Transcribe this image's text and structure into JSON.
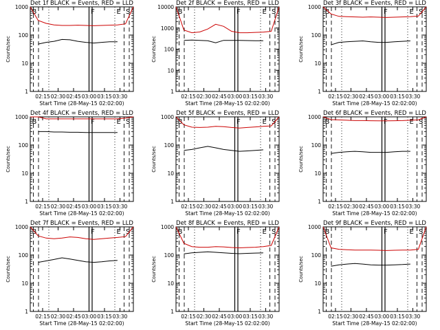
{
  "chart_data": [
    {
      "type": "line",
      "title": "Det 1f BLACK = Events, RED = LLD",
      "xlabel": "Start Time (28-May-15 02:02:00)",
      "ylabel": "Counts/sec",
      "yscale": "log",
      "ylim": [
        1,
        1000
      ],
      "xlim": [
        0,
        100
      ],
      "xtick_labels": [
        "02:15",
        "02:30",
        "02:45",
        "03:00",
        "03:15",
        "03:30"
      ],
      "ytick_labels": [
        "1",
        "10",
        "100",
        "1000"
      ],
      "markers": [
        "B",
        "F",
        "E",
        "S"
      ],
      "series": [
        {
          "color": "#cc0000",
          "values": [
            1000,
            330,
            260,
            230,
            220,
            220,
            225,
            220,
            215,
            220,
            225,
            230,
            250,
            1000
          ]
        },
        {
          "color": "#000000",
          "values": [
            null,
            48,
            55,
            60,
            70,
            68,
            60,
            55,
            52,
            55,
            58,
            58,
            null,
            null
          ]
        }
      ]
    },
    {
      "type": "line",
      "title": "Det 2f BLACK = Events, RED = LLD",
      "xlabel": "Start Time (28-May-15 02:02:00)",
      "ylabel": "Counts/sec",
      "yscale": "log",
      "ylim": [
        1,
        10000
      ],
      "xlim": [
        0,
        100
      ],
      "xtick_labels": [
        "02:15",
        "02:30",
        "02:45",
        "03:00",
        "03:15",
        "03:30"
      ],
      "ytick_labels": [
        "1",
        "10",
        "100",
        "1000",
        "10000"
      ],
      "markers": [
        "B",
        "F",
        "E",
        "S"
      ],
      "series": [
        {
          "color": "#cc0000",
          "values": [
            10000,
            800,
            600,
            650,
            900,
            1500,
            1200,
            700,
            600,
            600,
            620,
            640,
            700,
            10000
          ]
        },
        {
          "color": "#000000",
          "values": [
            null,
            260,
            270,
            260,
            250,
            200,
            260,
            260,
            260,
            255,
            250,
            250,
            null,
            null
          ]
        }
      ]
    },
    {
      "type": "line",
      "title": "Det 3f BLACK = Events, RED = LLD",
      "xlabel": "Start Time (28-May-15 02:02:00)",
      "ylabel": "Counts/sec",
      "yscale": "log",
      "ylim": [
        1,
        1000
      ],
      "xlim": [
        0,
        100
      ],
      "xtick_labels": [
        "02:15",
        "02:30",
        "02:45",
        "03:00",
        "03:15",
        "03:30"
      ],
      "ytick_labels": [
        "1",
        "10",
        "100",
        "1000"
      ],
      "markers": [
        "B",
        "F",
        "E",
        "S"
      ],
      "series": [
        {
          "color": "#cc0000",
          "values": [
            1000,
            560,
            460,
            450,
            440,
            430,
            440,
            430,
            420,
            430,
            440,
            450,
            470,
            1000
          ]
        },
        {
          "color": "#000000",
          "values": [
            null,
            45,
            55,
            58,
            60,
            62,
            58,
            55,
            55,
            58,
            60,
            62,
            null,
            null
          ]
        }
      ]
    },
    {
      "type": "line",
      "title": "Det 4f BLACK = Events, RED = LLD",
      "xlabel": "Start Time (28-May-15 02:02:00)",
      "ylabel": "Counts/sec",
      "yscale": "log",
      "ylim": [
        1,
        1000
      ],
      "xlim": [
        0,
        100
      ],
      "xtick_labels": [
        "02:15",
        "02:30",
        "02:45",
        "03:00",
        "03:15",
        "03:30"
      ],
      "ytick_labels": [
        "1",
        "10",
        "100",
        "1000"
      ],
      "markers": [
        "B",
        "F",
        "E",
        "S"
      ],
      "series": [
        {
          "color": "#cc0000",
          "values": [
            1000,
            1000,
            850,
            850,
            850,
            850,
            850,
            850,
            850,
            850,
            850,
            850,
            900,
            1000
          ]
        },
        {
          "color": "#000000",
          "values": [
            null,
            300,
            300,
            290,
            290,
            285,
            285,
            280,
            280,
            280,
            280,
            280,
            null,
            null
          ]
        }
      ]
    },
    {
      "type": "line",
      "title": "Det 5f BLACK = Events, RED = LLD",
      "xlabel": "Start Time (28-May-15 02:02:00)",
      "ylabel": "Counts/sec",
      "yscale": "log",
      "ylim": [
        1,
        1000
      ],
      "xlim": [
        0,
        100
      ],
      "xtick_labels": [
        "02:15",
        "02:30",
        "02:45",
        "03:00",
        "03:15",
        "03:30"
      ],
      "ytick_labels": [
        "1",
        "10",
        "100",
        "1000"
      ],
      "markers": [
        "B",
        "F",
        "E",
        "S"
      ],
      "series": [
        {
          "color": "#cc0000",
          "values": [
            1000,
            520,
            430,
            420,
            430,
            460,
            450,
            420,
            400,
            420,
            440,
            460,
            480,
            1000
          ]
        },
        {
          "color": "#000000",
          "values": [
            null,
            65,
            70,
            80,
            90,
            80,
            70,
            65,
            60,
            62,
            65,
            68,
            null,
            null
          ]
        }
      ]
    },
    {
      "type": "line",
      "title": "Det 6f BLACK = Events, RED = LLD",
      "xlabel": "Start Time (28-May-15 02:02:00)",
      "ylabel": "Counts/sec",
      "yscale": "log",
      "ylim": [
        1,
        1000
      ],
      "xlim": [
        0,
        100
      ],
      "xtick_labels": [
        "02:15",
        "02:30",
        "02:45",
        "03:00",
        "03:15",
        "03:30"
      ],
      "ytick_labels": [
        "1",
        "10",
        "100",
        "1000"
      ],
      "markers": [
        "B",
        "F",
        "E",
        "S"
      ],
      "series": [
        {
          "color": "#cc0000",
          "values": [
            1000,
            800,
            780,
            760,
            740,
            740,
            730,
            720,
            720,
            730,
            740,
            760,
            780,
            1000
          ]
        },
        {
          "color": "#000000",
          "values": [
            null,
            50,
            55,
            58,
            60,
            58,
            55,
            55,
            55,
            58,
            60,
            60,
            null,
            null
          ]
        }
      ]
    },
    {
      "type": "line",
      "title": "Det 7f BLACK = Events, RED = LLD",
      "xlabel": "Start Time (28-May-15 02:02:00)",
      "ylabel": "Counts/sec",
      "yscale": "log",
      "ylim": [
        1,
        1000
      ],
      "xlim": [
        0,
        100
      ],
      "xtick_labels": [
        "02:15",
        "02:30",
        "02:45",
        "03:00",
        "03:15",
        "03:30"
      ],
      "ytick_labels": [
        "1",
        "10",
        "100",
        "1000"
      ],
      "markers": [
        "B",
        "F",
        "E",
        "S"
      ],
      "series": [
        {
          "color": "#cc0000",
          "values": [
            1000,
            480,
            400,
            380,
            400,
            440,
            420,
            380,
            360,
            380,
            400,
            420,
            450,
            1000
          ]
        },
        {
          "color": "#000000",
          "values": [
            null,
            55,
            62,
            70,
            80,
            72,
            65,
            58,
            55,
            58,
            62,
            65,
            null,
            null
          ]
        }
      ]
    },
    {
      "type": "line",
      "title": "Det 8f BLACK = Events, RED = LLD",
      "xlabel": "Start Time (28-May-15 02:02:00)",
      "ylabel": "Counts/sec",
      "yscale": "log",
      "ylim": [
        1,
        1000
      ],
      "xlim": [
        0,
        100
      ],
      "xtick_labels": [
        "02:15",
        "02:30",
        "02:45",
        "03:00",
        "03:15",
        "03:30"
      ],
      "ytick_labels": [
        "1",
        "10",
        "100",
        "1000"
      ],
      "markers": [
        "B",
        "F",
        "E",
        "S"
      ],
      "series": [
        {
          "color": "#cc0000",
          "values": [
            1000,
            260,
            200,
            190,
            190,
            200,
            195,
            185,
            180,
            185,
            190,
            200,
            220,
            1000
          ]
        },
        {
          "color": "#000000",
          "values": [
            null,
            110,
            120,
            125,
            130,
            125,
            120,
            115,
            112,
            115,
            118,
            120,
            null,
            null
          ]
        }
      ]
    },
    {
      "type": "line",
      "title": "Det 9f BLACK = Events, RED = LLD",
      "xlabel": "Start Time (28-May-15 02:02:00)",
      "ylabel": "Counts/sec",
      "yscale": "log",
      "ylim": [
        1,
        1000
      ],
      "xlim": [
        0,
        100
      ],
      "xtick_labels": [
        "02:15",
        "02:30",
        "02:45",
        "03:00",
        "03:15",
        "03:30"
      ],
      "ytick_labels": [
        "1",
        "10",
        "100",
        "1000"
      ],
      "markers": [
        "B",
        "F",
        "E",
        "S"
      ],
      "series": [
        {
          "color": "#cc0000",
          "values": [
            1000,
            180,
            160,
            155,
            150,
            150,
            150,
            148,
            145,
            148,
            150,
            150,
            160,
            1000
          ]
        },
        {
          "color": "#000000",
          "values": [
            null,
            40,
            45,
            48,
            50,
            48,
            45,
            44,
            44,
            45,
            46,
            48,
            null,
            null
          ]
        }
      ]
    }
  ]
}
